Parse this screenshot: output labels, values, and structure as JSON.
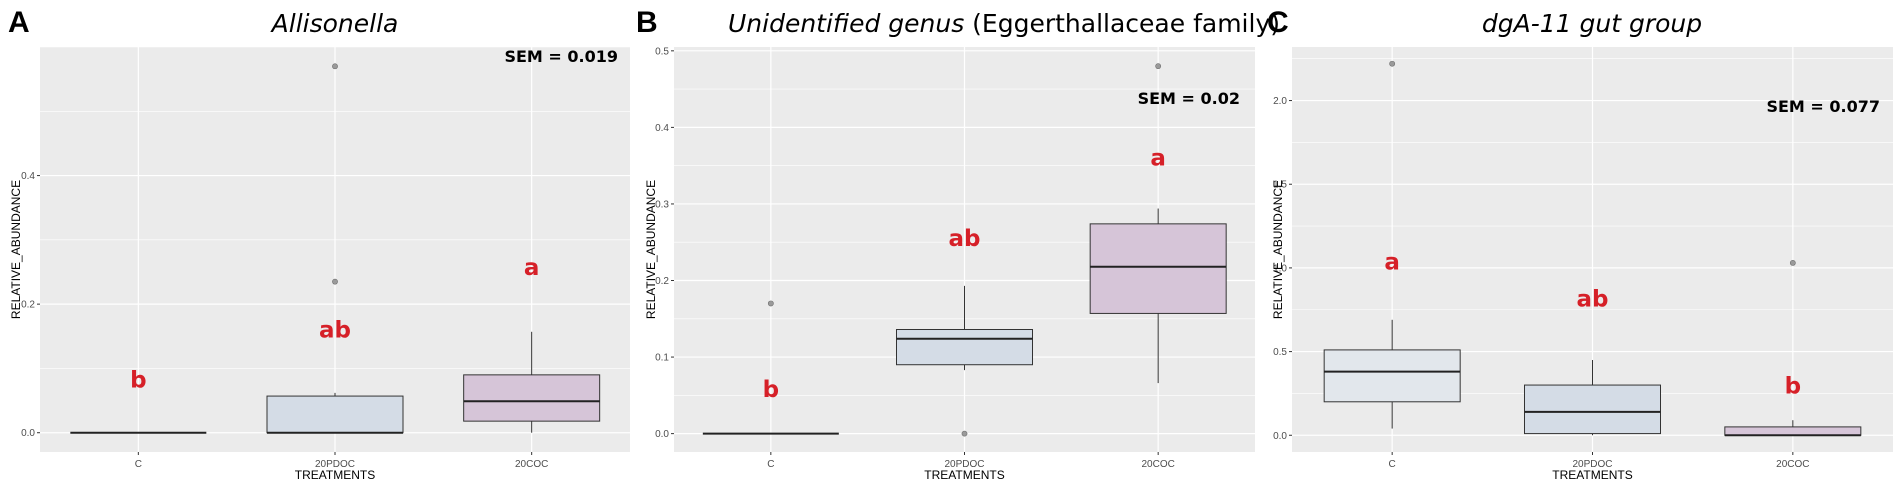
{
  "chart_data": [
    {
      "type": "box",
      "panel_label": "A",
      "title_italic": "Allisonella",
      "title_rest": "",
      "xlabel": "TREATMENTS",
      "ylabel": "RELATIVE_ABUNDANCE",
      "ylim": [
        -0.03,
        0.6
      ],
      "yticks": [
        0.0,
        0.2,
        0.4
      ],
      "ytick_labels": [
        "0.0",
        "0.2",
        "0.4"
      ],
      "sem_text": "SEM = 0.019",
      "grid": true,
      "categories": [
        "C",
        "20PDOC",
        "20COC"
      ],
      "boxes": [
        {
          "category": "C",
          "min": 0.0,
          "q1": 0.0,
          "median": 0.0,
          "q3": 0.0,
          "max": 0.0,
          "outliers": [],
          "fill": "#d9d9d9",
          "letter": "b",
          "letter_y": 0.07
        },
        {
          "category": "20PDOC",
          "min": 0.0,
          "q1": 0.0,
          "median": 0.0,
          "q3": 0.057,
          "max": 0.062,
          "outliers": [
            0.235,
            0.57
          ],
          "fill": "#d4dce6",
          "letter": "ab",
          "letter_y": 0.148
        },
        {
          "category": "20COC",
          "min": 0.0,
          "q1": 0.018,
          "median": 0.049,
          "q3": 0.09,
          "max": 0.157,
          "outliers": [],
          "fill": "#d6c5d8",
          "letter": "a",
          "letter_y": 0.245
        }
      ]
    },
    {
      "type": "box",
      "panel_label": "B",
      "title_italic": "Unidentified genus",
      "title_rest": " (Eggerthallaceae family)",
      "xlabel": "TREATMENTS",
      "ylabel": "RELATIVE_ABUNDANCE",
      "ylim": [
        -0.024,
        0.505
      ],
      "yticks": [
        0.0,
        0.1,
        0.2,
        0.3,
        0.4,
        0.5
      ],
      "ytick_labels": [
        "0.0",
        "0.1",
        "0.2",
        "0.3",
        "0.4",
        "0.5"
      ],
      "sem_text": "SEM = 0.02",
      "grid": true,
      "categories": [
        "C",
        "20PDOC",
        "20COC"
      ],
      "boxes": [
        {
          "category": "C",
          "min": 0.0,
          "q1": 0.0,
          "median": 0.0,
          "q3": 0.0,
          "max": 0.0,
          "outliers": [
            0.17
          ],
          "fill": "#d9d9d9",
          "letter": "b",
          "letter_y": 0.048
        },
        {
          "category": "20PDOC",
          "min": 0.083,
          "q1": 0.09,
          "median": 0.124,
          "q3": 0.136,
          "max": 0.193,
          "outliers": [
            0.0
          ],
          "fill": "#d4dce6",
          "letter": "ab",
          "letter_y": 0.245
        },
        {
          "category": "20COC",
          "min": 0.066,
          "q1": 0.157,
          "median": 0.218,
          "q3": 0.274,
          "max": 0.294,
          "outliers": [
            0.48
          ],
          "fill": "#d6c5d8",
          "letter": "a",
          "letter_y": 0.35
        }
      ]
    },
    {
      "type": "box",
      "panel_label": "C",
      "title_italic": "dgA-11 gut group",
      "title_rest": "",
      "xlabel": "TREATMENTS",
      "ylabel": "RELATIVE_ABUNDANCE",
      "ylim": [
        -0.1,
        2.32
      ],
      "yticks": [
        0.0,
        0.5,
        1.0,
        1.5,
        2.0
      ],
      "ytick_labels": [
        "0.0",
        "0.5",
        "1.0",
        "1.5",
        "2.0"
      ],
      "sem_text": "SEM = 0.077",
      "grid": true,
      "categories": [
        "C",
        "20PDOC",
        "20COC"
      ],
      "boxes": [
        {
          "category": "C",
          "min": 0.04,
          "q1": 0.2,
          "median": 0.38,
          "q3": 0.51,
          "max": 0.69,
          "outliers": [
            2.22
          ],
          "fill": "#e2e7ec",
          "letter": "a",
          "letter_y": 0.99
        },
        {
          "category": "20PDOC",
          "min": 0.0,
          "q1": 0.01,
          "median": 0.14,
          "q3": 0.3,
          "max": 0.45,
          "outliers": [],
          "fill": "#d4dce6",
          "letter": "ab",
          "letter_y": 0.77
        },
        {
          "category": "20COC",
          "min": 0.0,
          "q1": 0.0,
          "median": 0.0,
          "q3": 0.05,
          "max": 0.09,
          "outliers": [
            1.03
          ],
          "fill": "#d6c5d8",
          "letter": "b",
          "letter_y": 0.25
        }
      ]
    }
  ]
}
